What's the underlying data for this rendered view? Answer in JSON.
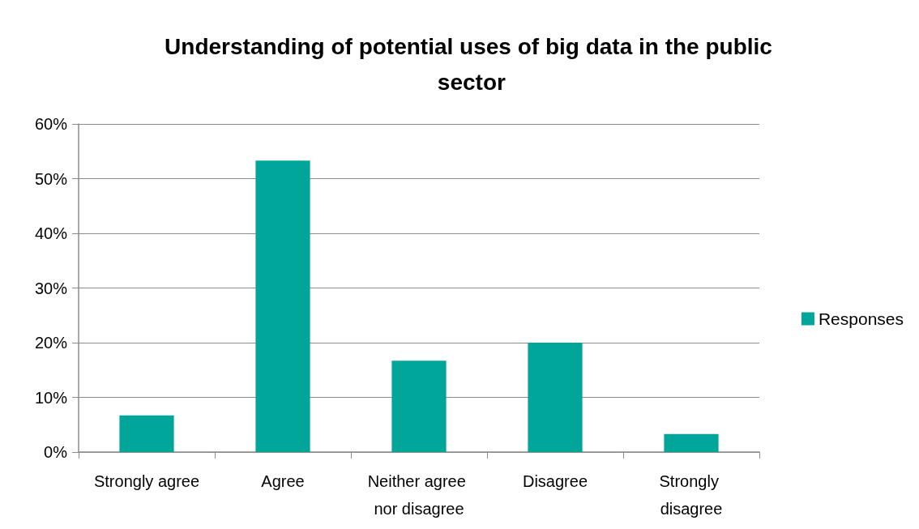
{
  "chart_data": {
    "type": "bar",
    "title": "Understanding of potential uses of big data in the public sector",
    "categories": [
      "Strongly agree",
      "Agree",
      "Neither agree nor disagree",
      "Disagree",
      "Strongly disagree"
    ],
    "series": [
      {
        "name": "Responses",
        "color": "#00a69a",
        "values": [
          6.7,
          53.3,
          16.7,
          20,
          3.3
        ]
      }
    ],
    "ylim": [
      0,
      60
    ],
    "yticks": [
      {
        "value": 0,
        "label": "0%"
      },
      {
        "value": 10,
        "label": "10%"
      },
      {
        "value": 20,
        "label": "20%"
      },
      {
        "value": 30,
        "label": "30%"
      },
      {
        "value": 40,
        "label": "40%"
      },
      {
        "value": 50,
        "label": "50%"
      },
      {
        "value": 60,
        "label": "60%"
      }
    ],
    "grid": "y",
    "legend": "right"
  }
}
